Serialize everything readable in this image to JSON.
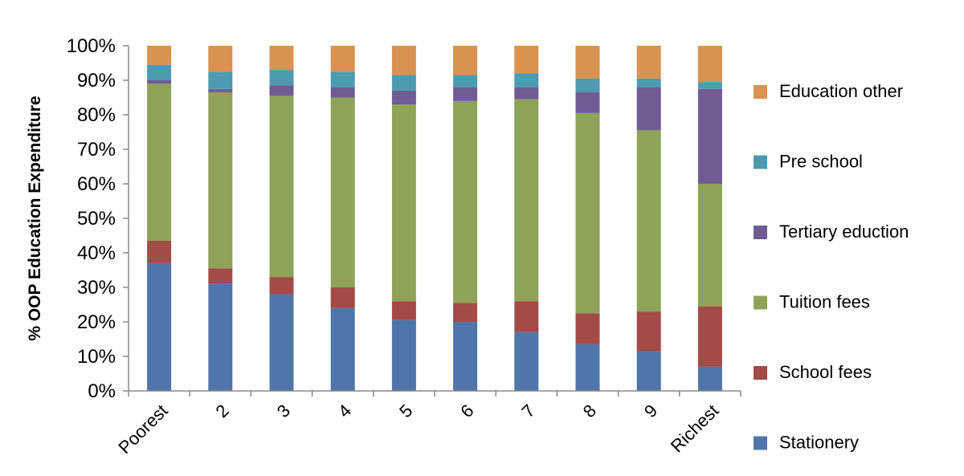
{
  "chart_data": {
    "type": "bar",
    "stacked": true,
    "categories": [
      "Poorest",
      "2",
      "3",
      "4",
      "5",
      "6",
      "7",
      "8",
      "9",
      "Richest"
    ],
    "series": [
      {
        "name": "Stationery",
        "color": "#4F76A8",
        "values": [
          37,
          31,
          28,
          24,
          20.5,
          20,
          17,
          13.5,
          11.5,
          7
        ]
      },
      {
        "name": "School fees",
        "color": "#A24B47",
        "values": [
          6.5,
          4.5,
          5,
          6,
          5.5,
          5.5,
          9,
          9,
          11.5,
          17.5
        ]
      },
      {
        "name": "Tuition fees",
        "color": "#8DA357",
        "values": [
          45.5,
          51,
          52.5,
          55,
          57,
          58.5,
          58.5,
          58,
          52.5,
          35.5
        ]
      },
      {
        "name": "Tertiary eduction",
        "color": "#715B95",
        "values": [
          1,
          1,
          3,
          3,
          4,
          4,
          3.5,
          6,
          12.5,
          27.5
        ]
      },
      {
        "name": "Pre school",
        "color": "#4D9AB3",
        "values": [
          4.5,
          5,
          4.5,
          4.5,
          4.5,
          3.5,
          4,
          4,
          2.5,
          2
        ]
      },
      {
        "name": "Education other",
        "color": "#D99252",
        "values": [
          5.5,
          7.5,
          7,
          7.5,
          8.5,
          8.5,
          8,
          9.5,
          9.5,
          10.5
        ]
      }
    ],
    "ylabel": "% OOP Education Expenditure",
    "xlabel": "",
    "ylim": [
      0,
      100
    ],
    "yticks": [
      "0%",
      "10%",
      "20%",
      "30%",
      "40%",
      "50%",
      "60%",
      "70%",
      "80%",
      "90%",
      "100%"
    ],
    "grid": false,
    "legend": "right"
  }
}
